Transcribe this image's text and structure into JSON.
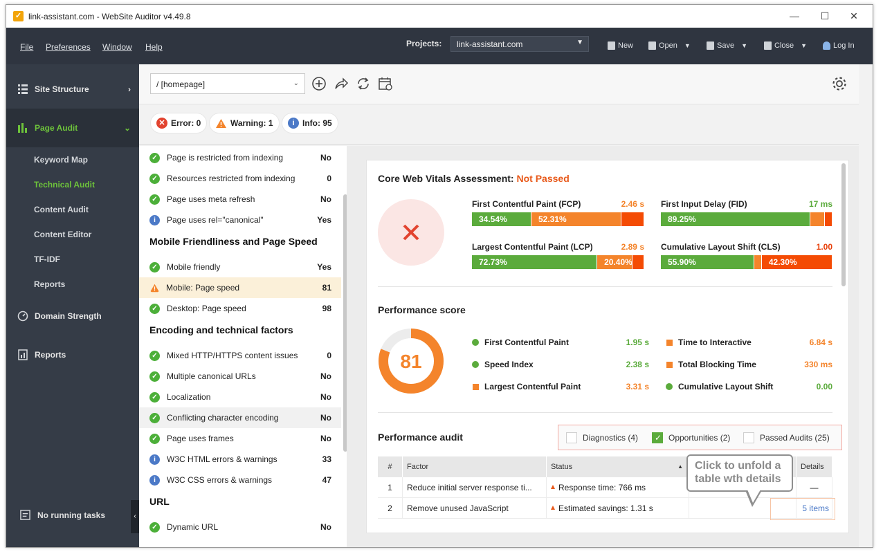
{
  "window": {
    "title": "link-assistant.com - WebSite Auditor v4.49.8",
    "app_icon": "checkmark-app-icon"
  },
  "menu": {
    "items": [
      "File",
      "Preferences",
      "Window",
      "Help"
    ],
    "projects_label": "Projects:",
    "project_selected": "link-assistant.com",
    "tools": {
      "new": "New",
      "open": "Open",
      "save": "Save",
      "close": "Close",
      "login": "Log In"
    }
  },
  "sidebar": {
    "sections": {
      "site_structure": "Site Structure",
      "page_audit": "Page Audit",
      "domain_strength": "Domain Strength",
      "reports": "Reports"
    },
    "sub_items": [
      "Keyword Map",
      "Technical Audit",
      "Content Audit",
      "Content Editor",
      "TF-IDF",
      "Reports"
    ],
    "active_sub": "Technical Audit",
    "running": "No running tasks",
    "accent": "#6dc23b"
  },
  "toolbar": {
    "page_value": "/ [homepage]"
  },
  "filters": {
    "error": "Error: 0",
    "warning": "Warning: 1",
    "info": "Info: 95"
  },
  "factors": {
    "rows": [
      {
        "label": "Page is restricted from indexing",
        "value": "No",
        "status": "ok"
      },
      {
        "label": "Resources restricted from indexing",
        "value": "0",
        "status": "ok"
      },
      {
        "label": "Page uses meta refresh",
        "value": "No",
        "status": "ok"
      },
      {
        "label": "Page uses rel=\"canonical\"",
        "value": "Yes",
        "status": "info"
      }
    ],
    "mobile_heading": "Mobile Friendliness and Page Speed",
    "mobile_rows": [
      {
        "label": "Mobile friendly",
        "value": "Yes",
        "status": "ok"
      },
      {
        "label": "Mobile: Page speed",
        "value": "81",
        "status": "warning"
      },
      {
        "label": "Desktop: Page speed",
        "value": "98",
        "status": "ok"
      }
    ],
    "encoding_heading": "Encoding and technical factors",
    "encoding_rows": [
      {
        "label": "Mixed HTTP/HTTPS content issues",
        "value": "0",
        "status": "ok"
      },
      {
        "label": "Multiple canonical URLs",
        "value": "No",
        "status": "ok"
      },
      {
        "label": "Localization",
        "value": "No",
        "status": "ok"
      },
      {
        "label": "Conflicting character encoding",
        "value": "No",
        "status": "ok"
      },
      {
        "label": "Page uses frames",
        "value": "No",
        "status": "ok"
      },
      {
        "label": "W3C HTML errors & warnings",
        "value": "33",
        "status": "info"
      },
      {
        "label": "W3C CSS errors & warnings",
        "value": "47",
        "status": "info"
      }
    ],
    "url_heading": "URL",
    "url_rows": [
      {
        "label": "Dynamic URL",
        "value": "No",
        "status": "ok"
      }
    ]
  },
  "cwv": {
    "title": "Core Web Vitals Assessment:",
    "status": "Not Passed",
    "metrics": {
      "fcp": {
        "label": "First Contentful Paint (FCP)",
        "value": "2.46 s",
        "segments": [
          "34.54%",
          "52.31%",
          ""
        ],
        "shares": [
          34.54,
          52.31,
          13.15
        ]
      },
      "fid": {
        "label": "First Input Delay (FID)",
        "value": "17 ms",
        "segments": [
          "89.25%",
          "",
          ""
        ],
        "shares": [
          89.25,
          8.5,
          2.25
        ]
      },
      "lcp": {
        "label": "Largest Contentful Paint (LCP)",
        "value": "2.89 s",
        "segments": [
          "72.73%",
          "20.40%",
          ""
        ],
        "shares": [
          72.73,
          20.4,
          6.87
        ]
      },
      "cls": {
        "label": "Cumulative Layout Shift (CLS)",
        "value": "1.00",
        "segments": [
          "55.90%",
          "",
          "42.30%"
        ],
        "shares": [
          55.9,
          1.8,
          42.3
        ]
      }
    }
  },
  "performance": {
    "title": "Performance score",
    "score": "81",
    "score_fraction": 0.81,
    "metrics": {
      "fcp": {
        "label": "First Contentful Paint",
        "value": "1.95 s"
      },
      "si": {
        "label": "Speed Index",
        "value": "2.38 s"
      },
      "lcp": {
        "label": "Largest Contentful Paint",
        "value": "3.31 s"
      },
      "tti": {
        "label": "Time to Interactive",
        "value": "6.84 s"
      },
      "tbt": {
        "label": "Total Blocking Time",
        "value": "330 ms"
      },
      "cls": {
        "label": "Cumulative Layout Shift",
        "value": "0.00"
      }
    }
  },
  "audit": {
    "title": "Performance audit",
    "filters": {
      "diagnostics": "Diagnostics (4)",
      "opportunities": "Opportunities (2)",
      "passed": "Passed Audits (25)"
    },
    "columns": {
      "num": "#",
      "factor": "Factor",
      "status": "Status",
      "details": "Details"
    },
    "rows": [
      {
        "num": "1",
        "factor": "Reduce initial server response ti...",
        "status": "Response time: 766 ms",
        "details": "—"
      },
      {
        "num": "2",
        "factor": "Remove unused JavaScript",
        "status": "Estimated savings: 1.31 s",
        "details": "5 items"
      }
    ]
  },
  "callout": {
    "text": "Click to unfold a table wth details"
  }
}
